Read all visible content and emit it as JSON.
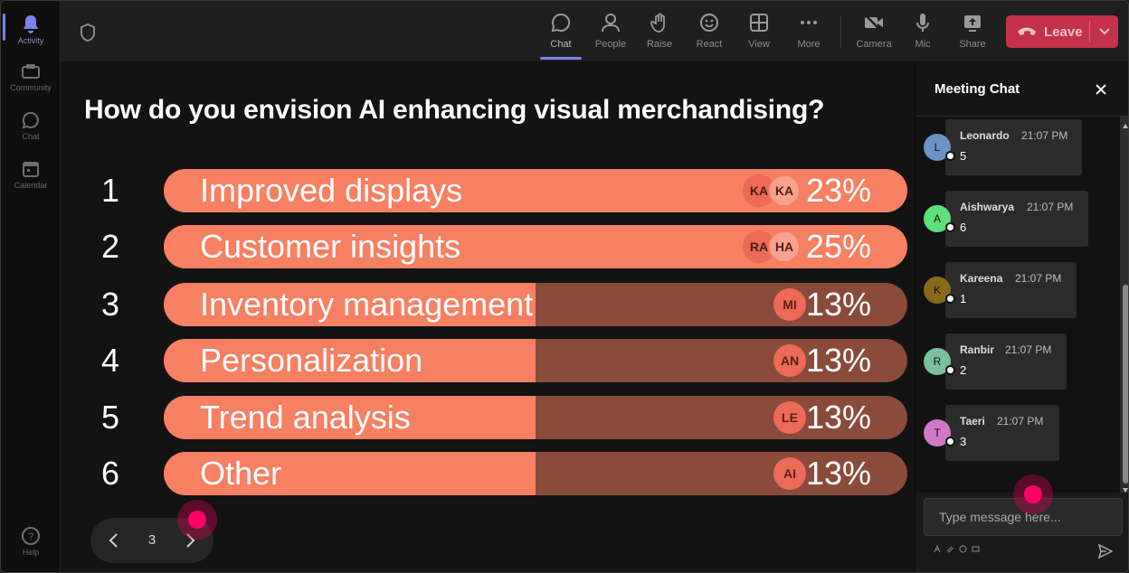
{
  "rail": {
    "items": [
      {
        "label": "Activity",
        "icon": "bell-icon",
        "active": true
      },
      {
        "label": "Community",
        "icon": "community-icon"
      },
      {
        "label": "Chat",
        "icon": "chat-icon"
      },
      {
        "label": "Calendar",
        "icon": "calendar-icon"
      }
    ],
    "help_label": "Help"
  },
  "toolbar": {
    "buttons": [
      {
        "label": "Chat",
        "icon": "chat-icon",
        "active": true
      },
      {
        "label": "People",
        "icon": "people-icon"
      },
      {
        "label": "Raise",
        "icon": "raise-hand-icon"
      },
      {
        "label": "React",
        "icon": "react-icon"
      },
      {
        "label": "View",
        "icon": "view-icon"
      },
      {
        "label": "More",
        "icon": "more-icon"
      },
      {
        "label": "Camera",
        "icon": "camera-off-icon"
      },
      {
        "label": "Mic",
        "icon": "mic-icon"
      },
      {
        "label": "Share",
        "icon": "share-icon"
      }
    ],
    "leave_label": "Leave"
  },
  "poll": {
    "question": "How do you envision AI enhancing visual merchandising?",
    "options": [
      {
        "num": "1",
        "label": "Improved displays",
        "pct": "23%",
        "fill": 1.0,
        "avatars": [
          "KA",
          "KA"
        ]
      },
      {
        "num": "2",
        "label": "Customer insights",
        "pct": "25%",
        "fill": 1.0,
        "avatars": [
          "RA",
          "HA"
        ]
      },
      {
        "num": "3",
        "label": "Inventory management",
        "pct": "13%",
        "fill": 0.5,
        "avatars": [
          "MI"
        ]
      },
      {
        "num": "4",
        "label": "Personalization",
        "pct": "13%",
        "fill": 0.5,
        "avatars": [
          "AN"
        ]
      },
      {
        "num": "5",
        "label": "Trend analysis",
        "pct": "13%",
        "fill": 0.5,
        "avatars": [
          "LE"
        ]
      },
      {
        "num": "6",
        "label": "Other",
        "pct": "13%",
        "fill": 0.5,
        "avatars": [
          "AI"
        ]
      }
    ],
    "page": "3"
  },
  "chat": {
    "title": "Meeting Chat",
    "messages": [
      {
        "initial": "L",
        "sender": "Leonardo",
        "time": "21:07 PM",
        "text": "5",
        "color": "#6b93c7"
      },
      {
        "initial": "A",
        "sender": "Aishwarya",
        "time": "21:07 PM",
        "text": "6",
        "color": "#5fe07a"
      },
      {
        "initial": "K",
        "sender": "Kareena",
        "time": "21:07 PM",
        "text": "1",
        "color": "#8a6a1a"
      },
      {
        "initial": "R",
        "sender": "Ranbir",
        "time": "21:07 PM",
        "text": "2",
        "color": "#7bbf9d"
      },
      {
        "initial": "T",
        "sender": "Taeri",
        "time": "21:07 PM",
        "text": "3",
        "color": "#d178c9"
      }
    ],
    "input_placeholder": "Type message here..."
  }
}
